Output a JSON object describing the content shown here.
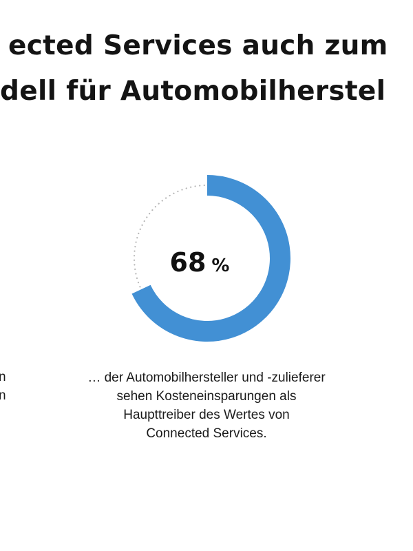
{
  "title": {
    "line1": "ected Services auch zum",
    "line2": "dell für Automobilherstel"
  },
  "chart_data": {
    "type": "pie",
    "variant": "donut",
    "value_percent": 68,
    "display_value": "68",
    "unit": "%",
    "colors": {
      "filled": "#4290D4",
      "remainder_dots": "#b8b8b8"
    },
    "caption_lines": [
      "… der Automobilhersteller und -zulieferer",
      "sehen Kosteneinsparungen als",
      "Haupttreiber des Wertes von",
      "Connected Services."
    ]
  },
  "left_cutoff_text": [
    "n",
    "n"
  ]
}
